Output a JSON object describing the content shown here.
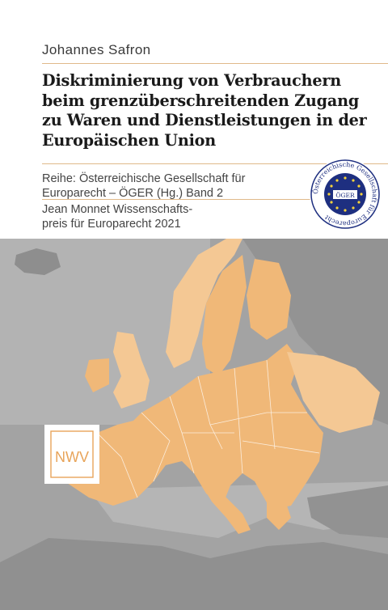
{
  "book": {
    "author": "Johannes Safron",
    "title_lines": [
      "Diskriminierung von Verbrauchern",
      "beim grenzüberschreitenden Zugang",
      "zu Waren und Dienstleistungen in der",
      "Europäischen Union"
    ],
    "series_lines": [
      "Reihe: Österreichische Gesellschaft für",
      "Europarecht – ÖGER (Hg.)  Band 2"
    ],
    "prize_lines": [
      "Jean Monnet Wissenschafts-",
      "preis für Europarecht 2021"
    ]
  },
  "seal": {
    "ring_text": "Österreichische Gesellschaft für Europarecht",
    "center_text": "ÖGER"
  },
  "publisher_logo": {
    "text": "NWV"
  },
  "colors": {
    "accent_rule": "#e0b98a",
    "map_fill": "#f0b878",
    "map_fill_light": "#f4c894",
    "land_grey": "#9a9a9a",
    "sea_grey": "#b9b9b9"
  }
}
